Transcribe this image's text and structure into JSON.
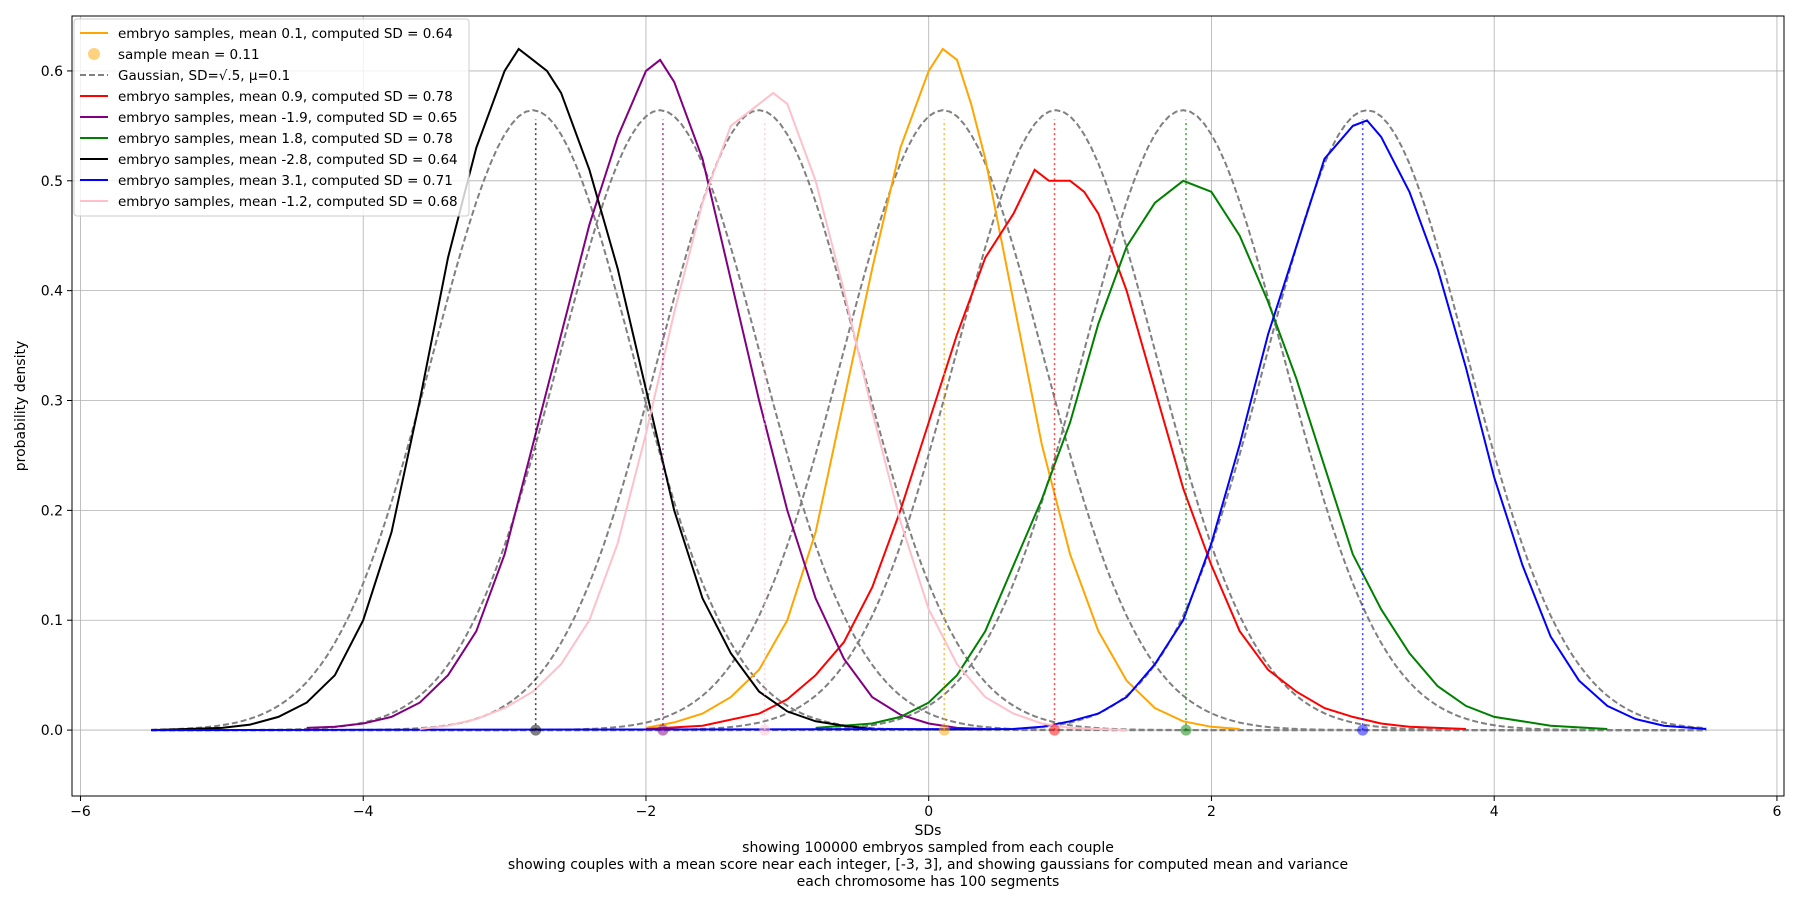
{
  "chart_data": {
    "type": "line",
    "xlabel": "SDs",
    "ylabel": "probability density",
    "caption_lines": [
      "showing 100000 embryos sampled from each couple",
      "showing couples with a mean score near each integer, [-3, 3], and showing gaussians for computed mean and variance",
      "each chromosome has 100 segments"
    ],
    "xlim": [
      -6.06,
      6.05
    ],
    "ylim": [
      -0.06,
      0.65
    ],
    "x_ticks": [
      -6,
      -4,
      -2,
      0,
      2,
      4,
      6
    ],
    "x_tick_labels": [
      "−6",
      "−4",
      "−2",
      "0",
      "2",
      "4",
      "6"
    ],
    "y_ticks": [
      0.0,
      0.1,
      0.2,
      0.3,
      0.4,
      0.5,
      0.6
    ],
    "y_tick_labels": [
      "0.0",
      "0.1",
      "0.2",
      "0.3",
      "0.4",
      "0.5",
      "0.6"
    ],
    "grid": true,
    "legend_position": "top-left",
    "gaussian_sd": 0.707,
    "gaussian_x_range": [
      -5.5,
      5.5
    ],
    "legend": [
      {
        "label": "embryo samples, mean 0.1, computed SD = 0.64",
        "kind": "line",
        "color": "#ffa500"
      },
      {
        "label": "sample mean = 0.11",
        "kind": "marker",
        "color": "#ffa500"
      },
      {
        "label": "Gaussian, SD=√.5, μ=0.1",
        "kind": "dashed",
        "color": "#808080"
      },
      {
        "label": "embryo samples, mean 0.9, computed SD = 0.78",
        "kind": "line",
        "color": "#ff0000"
      },
      {
        "label": "embryo samples, mean -1.9, computed SD = 0.65",
        "kind": "line",
        "color": "#800080"
      },
      {
        "label": "embryo samples, mean 1.8, computed SD = 0.78",
        "kind": "line",
        "color": "#008000"
      },
      {
        "label": "embryo samples, mean -2.8, computed SD = 0.64",
        "kind": "line",
        "color": "#000000"
      },
      {
        "label": "embryo samples, mean 3.1, computed SD = 0.71",
        "kind": "line",
        "color": "#0000ff"
      },
      {
        "label": "embryo samples, mean -1.2, computed SD = 0.68",
        "kind": "line",
        "color": "#ffc0cb"
      }
    ],
    "series": [
      {
        "color": "#ffa500",
        "sample_mean": 0.11,
        "gaussian_mean": 0.1,
        "x": [
          -2.0,
          -1.8,
          -1.6,
          -1.4,
          -1.2,
          -1.0,
          -0.8,
          -0.6,
          -0.4,
          -0.2,
          0.0,
          0.1,
          0.2,
          0.3,
          0.4,
          0.6,
          0.8,
          1.0,
          1.2,
          1.4,
          1.6,
          1.8,
          2.0,
          2.2
        ],
        "y": [
          0.002,
          0.007,
          0.015,
          0.03,
          0.055,
          0.1,
          0.18,
          0.3,
          0.42,
          0.53,
          0.6,
          0.62,
          0.61,
          0.57,
          0.52,
          0.39,
          0.26,
          0.16,
          0.09,
          0.045,
          0.02,
          0.008,
          0.003,
          0.001
        ]
      },
      {
        "color": "#ff0000",
        "sample_mean": 0.89,
        "gaussian_mean": 0.9,
        "x": [
          -2.0,
          -1.6,
          -1.2,
          -1.0,
          -0.8,
          -0.6,
          -0.4,
          -0.2,
          0.0,
          0.2,
          0.4,
          0.5,
          0.6,
          0.75,
          0.85,
          1.0,
          1.1,
          1.2,
          1.4,
          1.6,
          1.8,
          2.0,
          2.2,
          2.4,
          2.6,
          2.8,
          3.0,
          3.2,
          3.4,
          3.8
        ],
        "y": [
          0.001,
          0.004,
          0.015,
          0.028,
          0.05,
          0.08,
          0.13,
          0.2,
          0.28,
          0.36,
          0.43,
          0.45,
          0.47,
          0.51,
          0.5,
          0.5,
          0.49,
          0.47,
          0.4,
          0.31,
          0.22,
          0.15,
          0.09,
          0.055,
          0.035,
          0.02,
          0.012,
          0.006,
          0.003,
          0.001
        ]
      },
      {
        "color": "#800080",
        "sample_mean": -1.88,
        "gaussian_mean": -1.9,
        "x": [
          -4.4,
          -4.2,
          -4.0,
          -3.8,
          -3.6,
          -3.4,
          -3.2,
          -3.0,
          -2.8,
          -2.6,
          -2.4,
          -2.2,
          -2.0,
          -1.9,
          -1.8,
          -1.6,
          -1.4,
          -1.2,
          -1.0,
          -0.8,
          -0.6,
          -0.4,
          -0.2,
          0.0,
          0.2,
          0.4
        ],
        "y": [
          0.002,
          0.003,
          0.006,
          0.012,
          0.025,
          0.05,
          0.09,
          0.16,
          0.26,
          0.36,
          0.46,
          0.54,
          0.6,
          0.61,
          0.59,
          0.52,
          0.41,
          0.3,
          0.2,
          0.12,
          0.065,
          0.03,
          0.014,
          0.006,
          0.002,
          0.001
        ]
      },
      {
        "color": "#008000",
        "sample_mean": 1.82,
        "gaussian_mean": 1.8,
        "x": [
          -0.8,
          -0.4,
          -0.2,
          0.0,
          0.2,
          0.4,
          0.6,
          0.8,
          1.0,
          1.2,
          1.4,
          1.6,
          1.8,
          2.0,
          2.2,
          2.4,
          2.6,
          2.8,
          3.0,
          3.2,
          3.4,
          3.6,
          3.8,
          4.0,
          4.4,
          4.8
        ],
        "y": [
          0.002,
          0.006,
          0.012,
          0.025,
          0.05,
          0.09,
          0.15,
          0.21,
          0.28,
          0.37,
          0.44,
          0.48,
          0.5,
          0.49,
          0.45,
          0.39,
          0.32,
          0.24,
          0.16,
          0.11,
          0.07,
          0.04,
          0.022,
          0.012,
          0.004,
          0.001
        ]
      },
      {
        "color": "#000000",
        "sample_mean": -2.78,
        "gaussian_mean": -2.8,
        "x": [
          -5.5,
          -5.0,
          -4.8,
          -4.6,
          -4.4,
          -4.2,
          -4.0,
          -3.8,
          -3.6,
          -3.4,
          -3.2,
          -3.0,
          -2.9,
          -2.8,
          -2.7,
          -2.6,
          -2.4,
          -2.2,
          -2.0,
          -1.8,
          -1.6,
          -1.4,
          -1.2,
          -1.0,
          -0.8,
          -0.6,
          -0.4
        ],
        "y": [
          0.0,
          0.002,
          0.005,
          0.012,
          0.025,
          0.05,
          0.1,
          0.18,
          0.3,
          0.43,
          0.53,
          0.6,
          0.62,
          0.61,
          0.6,
          0.58,
          0.51,
          0.42,
          0.31,
          0.2,
          0.12,
          0.07,
          0.035,
          0.017,
          0.008,
          0.004,
          0.001
        ]
      },
      {
        "color": "#0000ff",
        "sample_mean": 3.07,
        "gaussian_mean": 3.1,
        "x": [
          -5.5,
          0.6,
          0.8,
          1.0,
          1.2,
          1.4,
          1.6,
          1.8,
          2.0,
          2.2,
          2.4,
          2.6,
          2.8,
          3.0,
          3.1,
          3.2,
          3.4,
          3.6,
          3.8,
          4.0,
          4.2,
          4.4,
          4.6,
          4.8,
          5.0,
          5.2,
          5.5
        ],
        "y": [
          0.0,
          0.001,
          0.003,
          0.008,
          0.015,
          0.03,
          0.06,
          0.1,
          0.17,
          0.26,
          0.36,
          0.44,
          0.52,
          0.55,
          0.555,
          0.54,
          0.49,
          0.42,
          0.33,
          0.23,
          0.15,
          0.085,
          0.045,
          0.022,
          0.01,
          0.004,
          0.001
        ]
      },
      {
        "color": "#ffc0cb",
        "sample_mean": -1.16,
        "gaussian_mean": -1.2,
        "x": [
          -3.6,
          -3.4,
          -3.2,
          -3.0,
          -2.8,
          -2.6,
          -2.4,
          -2.2,
          -2.0,
          -1.8,
          -1.6,
          -1.4,
          -1.2,
          -1.1,
          -1.0,
          -0.8,
          -0.6,
          -0.4,
          -0.2,
          0.0,
          0.2,
          0.4,
          0.6,
          0.8,
          1.0,
          1.4
        ],
        "y": [
          0.001,
          0.004,
          0.01,
          0.02,
          0.035,
          0.06,
          0.1,
          0.17,
          0.27,
          0.38,
          0.48,
          0.55,
          0.57,
          0.58,
          0.57,
          0.5,
          0.4,
          0.29,
          0.19,
          0.11,
          0.06,
          0.03,
          0.015,
          0.006,
          0.002,
          0.0
        ]
      }
    ]
  }
}
